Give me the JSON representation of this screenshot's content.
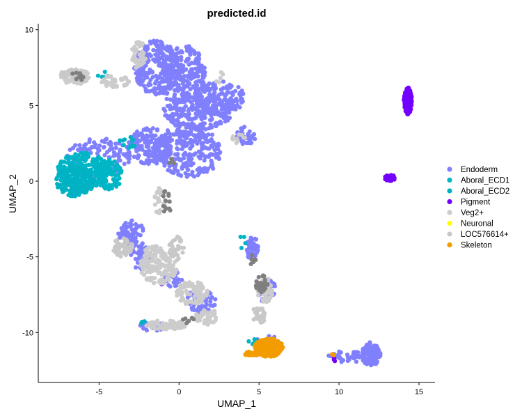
{
  "chart_data": {
    "type": "scatter",
    "title": "predicted.id",
    "xlabel": "UMAP_1",
    "ylabel": "UMAP_2",
    "xlim": [
      -8.8,
      16.0
    ],
    "ylim": [
      -13.3,
      10.4
    ],
    "xticks": [
      -5,
      0,
      5,
      10,
      15
    ],
    "yticks": [
      -10,
      -5,
      0,
      5,
      10
    ],
    "grid": false,
    "legend_position": "right",
    "series": [
      {
        "name": "Endoderm",
        "color": "#8080FF",
        "clusters": [
          {
            "cx": -1.4,
            "cy": 7.5,
            "rx": 1.4,
            "ry": 1.8,
            "n": 260
          },
          {
            "cx": 0.3,
            "cy": 6.8,
            "rx": 1.4,
            "ry": 2.2,
            "n": 240
          },
          {
            "cx": 1.2,
            "cy": 4.6,
            "rx": 2.2,
            "ry": 1.2,
            "n": 220
          },
          {
            "cx": 2.5,
            "cy": 5.5,
            "rx": 1.6,
            "ry": 1.1,
            "n": 140
          },
          {
            "cx": 0.6,
            "cy": 2.0,
            "rx": 2.0,
            "ry": 1.8,
            "n": 260
          },
          {
            "cx": -1.8,
            "cy": 2.3,
            "rx": 1.4,
            "ry": 1.2,
            "n": 160
          },
          {
            "cx": 4.2,
            "cy": 3.0,
            "rx": 0.6,
            "ry": 0.6,
            "n": 40
          },
          {
            "cx": -5.0,
            "cy": 1.6,
            "rx": 2.0,
            "ry": 1.3,
            "n": 110
          },
          {
            "cx": -3.0,
            "cy": -3.4,
            "rx": 0.8,
            "ry": 0.8,
            "n": 70
          },
          {
            "cx": -2.4,
            "cy": -5.0,
            "rx": 0.7,
            "ry": 0.9,
            "n": 50
          },
          {
            "cx": -0.4,
            "cy": -6.4,
            "rx": 0.6,
            "ry": 0.6,
            "n": 30
          },
          {
            "cx": 1.4,
            "cy": -7.9,
            "rx": 0.9,
            "ry": 0.8,
            "n": 60
          },
          {
            "cx": 4.6,
            "cy": -4.5,
            "rx": 0.4,
            "ry": 0.8,
            "n": 45
          },
          {
            "cx": 5.5,
            "cy": -7.3,
            "rx": 0.6,
            "ry": 0.8,
            "n": 40
          },
          {
            "cx": 12.0,
            "cy": -11.4,
            "rx": 0.6,
            "ry": 0.8,
            "n": 130
          },
          {
            "cx": 10.6,
            "cy": -11.6,
            "rx": 1.3,
            "ry": 0.4,
            "n": 40
          },
          {
            "cx": 5.6,
            "cy": -10.6,
            "rx": 0.8,
            "ry": 0.4,
            "n": 25
          },
          {
            "cx": -1.6,
            "cy": -9.6,
            "rx": 0.9,
            "ry": 0.3,
            "n": 15
          }
        ]
      },
      {
        "name": "Aboral_ECD1",
        "color": "#00B6C6",
        "clusters": [
          {
            "cx": -6.0,
            "cy": 0.7,
            "rx": 1.6,
            "ry": 1.2,
            "n": 260
          },
          {
            "cx": -4.4,
            "cy": 0.4,
            "rx": 0.9,
            "ry": 1.0,
            "n": 90
          },
          {
            "cx": -4.6,
            "cy": 7.0,
            "rx": 0.6,
            "ry": 0.3,
            "n": 5
          },
          {
            "cx": 4.0,
            "cy": -4.0,
            "rx": 0.2,
            "ry": 0.5,
            "n": 4
          }
        ]
      },
      {
        "name": "Aboral_ECD2",
        "color": "#00B2C4",
        "clusters": [
          {
            "cx": -6.5,
            "cy": 0.0,
            "rx": 1.2,
            "ry": 1.0,
            "n": 180
          },
          {
            "cx": -3.2,
            "cy": 2.6,
            "rx": 0.6,
            "ry": 0.4,
            "n": 12
          },
          {
            "cx": 4.6,
            "cy": -10.5,
            "rx": 0.5,
            "ry": 0.3,
            "n": 6
          },
          {
            "cx": -2.0,
            "cy": -9.3,
            "rx": 0.4,
            "ry": 0.2,
            "n": 4
          }
        ]
      },
      {
        "name": "Pigment",
        "color": "#7300FF",
        "clusters": [
          {
            "cx": 14.3,
            "cy": 5.3,
            "rx": 0.25,
            "ry": 0.9,
            "n": 150
          },
          {
            "cx": 13.2,
            "cy": 0.2,
            "rx": 0.4,
            "ry": 0.2,
            "n": 40
          },
          {
            "cx": 5.3,
            "cy": -11.2,
            "rx": 0.6,
            "ry": 0.5,
            "n": 12
          },
          {
            "cx": -1.0,
            "cy": -6.8,
            "rx": 0.2,
            "ry": 0.2,
            "n": 2
          },
          {
            "cx": 9.8,
            "cy": -11.8,
            "rx": 0.3,
            "ry": 0.2,
            "n": 3
          }
        ]
      },
      {
        "name": "Veg2+",
        "color": "#CCCCCC",
        "clusters": [
          {
            "cx": -6.5,
            "cy": 6.9,
            "rx": 0.9,
            "ry": 0.5,
            "n": 70
          },
          {
            "cx": -4.0,
            "cy": 6.6,
            "rx": 0.9,
            "ry": 0.4,
            "n": 40
          },
          {
            "cx": -2.5,
            "cy": 8.3,
            "rx": 0.5,
            "ry": 0.9,
            "n": 40
          },
          {
            "cx": -1.2,
            "cy": -1.2,
            "rx": 0.4,
            "ry": 1.0,
            "n": 30
          },
          {
            "cx": -1.3,
            "cy": -5.5,
            "rx": 1.2,
            "ry": 1.3,
            "n": 170
          },
          {
            "cx": 0.8,
            "cy": -7.4,
            "rx": 1.0,
            "ry": 0.8,
            "n": 90
          },
          {
            "cx": 1.8,
            "cy": -9.0,
            "rx": 0.8,
            "ry": 0.5,
            "n": 45
          },
          {
            "cx": -0.8,
            "cy": -9.5,
            "rx": 1.3,
            "ry": 0.3,
            "n": 60
          },
          {
            "cx": 5.4,
            "cy": -7.2,
            "rx": 0.5,
            "ry": 0.8,
            "n": 45
          },
          {
            "cx": 3.6,
            "cy": 2.8,
            "rx": 0.6,
            "ry": 0.3,
            "n": 10
          },
          {
            "cx": 2.5,
            "cy": 6.9,
            "rx": 0.3,
            "ry": 0.4,
            "n": 5
          }
        ]
      },
      {
        "name": "Neuronal",
        "color": "#FFFF00",
        "clusters": []
      },
      {
        "name": "LOC576614+",
        "color": "#C8C8C8",
        "clusters": [
          {
            "cx": -6.8,
            "cy": 7.1,
            "rx": 0.6,
            "ry": 0.3,
            "n": 25
          },
          {
            "cx": -3.5,
            "cy": -4.4,
            "rx": 0.6,
            "ry": 0.8,
            "n": 50
          },
          {
            "cx": -0.2,
            "cy": -4.5,
            "rx": 0.5,
            "ry": 0.9,
            "n": 30
          },
          {
            "cx": 5.0,
            "cy": -8.8,
            "rx": 0.5,
            "ry": 0.6,
            "n": 30
          }
        ]
      },
      {
        "name": "Skeleton",
        "color": "#F39C00",
        "clusters": [
          {
            "cx": 5.6,
            "cy": -11.0,
            "rx": 0.9,
            "ry": 0.6,
            "n": 260
          },
          {
            "cx": 4.6,
            "cy": -11.4,
            "rx": 0.5,
            "ry": 0.15,
            "n": 40
          },
          {
            "cx": 9.6,
            "cy": -11.5,
            "rx": 0.1,
            "ry": 0.1,
            "n": 2
          }
        ]
      },
      {
        "name": "",
        "color": "#7F7F7F",
        "clusters": [
          {
            "cx": 5.2,
            "cy": -6.8,
            "rx": 0.4,
            "ry": 0.6,
            "n": 30
          },
          {
            "cx": 4.6,
            "cy": -5.2,
            "rx": 0.2,
            "ry": 0.5,
            "n": 8
          },
          {
            "cx": -0.8,
            "cy": -1.5,
            "rx": 0.3,
            "ry": 1.0,
            "n": 14
          },
          {
            "cx": -6.3,
            "cy": 6.9,
            "rx": 0.5,
            "ry": 0.3,
            "n": 8
          },
          {
            "cx": 0.6,
            "cy": -9.2,
            "rx": 0.4,
            "ry": 0.2,
            "n": 6
          },
          {
            "cx": -0.5,
            "cy": 1.2,
            "rx": 0.2,
            "ry": 0.3,
            "n": 4
          }
        ]
      }
    ]
  }
}
